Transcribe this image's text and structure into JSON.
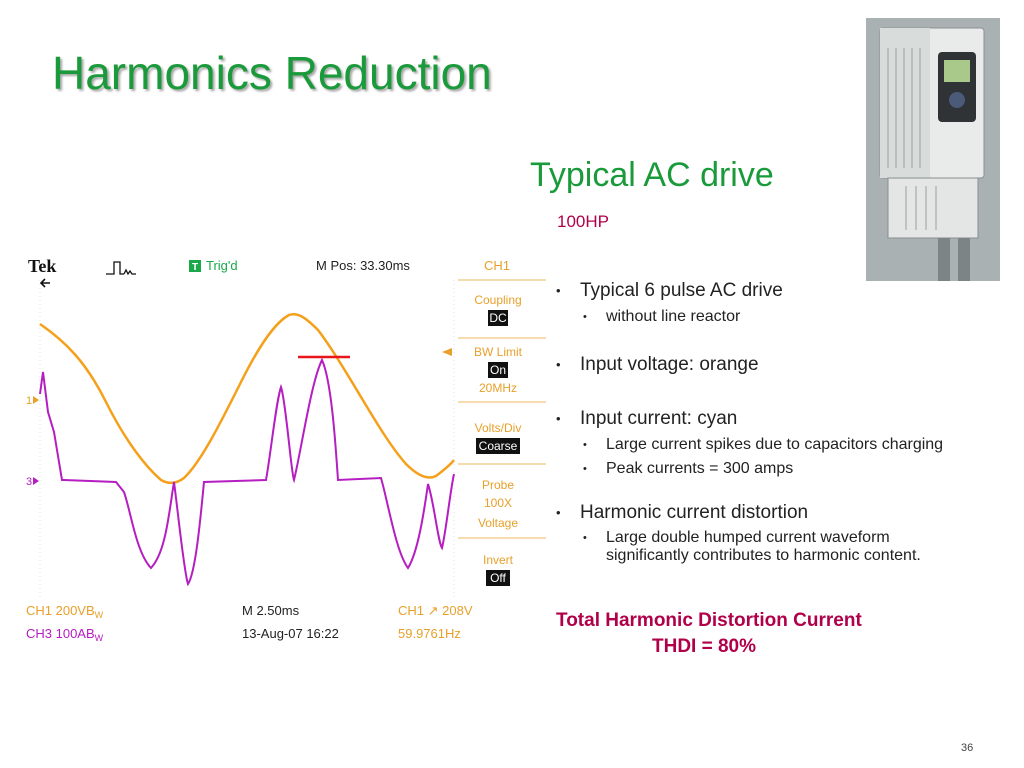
{
  "slide": {
    "title": "Harmonics Reduction",
    "subtitle": "Typical AC drive",
    "rating": "100HP",
    "page_number": "36"
  },
  "bullets": {
    "b1": {
      "text": "Typical 6 pulse AC drive",
      "sub1": "without line reactor"
    },
    "b2": {
      "text": "Input voltage: orange"
    },
    "b3": {
      "text": "Input current:  cyan",
      "sub1": "Large current spikes due to capacitors charging",
      "sub2": "Peak currents = 300 amps"
    },
    "b4": {
      "text": "Harmonic current distortion",
      "sub1": "Large double humped current waveform",
      "sub2": "significantly contributes to harmonic content."
    }
  },
  "summary": {
    "line1": "Total Harmonic Distortion Current",
    "line2": "THDI =   80%"
  },
  "scope": {
    "brand": "Tek",
    "trig_label": "T",
    "trig_status": "Trig'd",
    "mpos": "M Pos: 33.30ms",
    "ch_header": "CH1",
    "menu": {
      "coupling_label": "Coupling",
      "coupling_value": "DC",
      "bw_label": "BW Limit",
      "bw_value": "On",
      "bw_sub": "20MHz",
      "volts_label": "Volts/Div",
      "volts_value": "Coarse",
      "probe_l1": "Probe",
      "probe_l2": "100X",
      "probe_l3": "Voltage",
      "invert_label": "Invert",
      "invert_value": "Off"
    },
    "markers": {
      "ch1": "1",
      "ch3": "3"
    },
    "footer": {
      "ch1": "CH1  200VB",
      "ch1_sub": "W",
      "ch3": "CH3  100AB",
      "ch3_sub": "W",
      "timebase": "M 2.50ms",
      "date": "13-Aug-07 16:22",
      "trigger": "CH1 ↗ 208V",
      "freq": "59.9761Hz"
    },
    "colors": {
      "voltage": "#f5a01a",
      "current": "#b51ec0",
      "peak_marker": "#e8161b",
      "ui_text": "#e8a02a",
      "grid_bg": "#ffffff"
    }
  },
  "photo": {
    "icon": "ac-drive-photo"
  }
}
